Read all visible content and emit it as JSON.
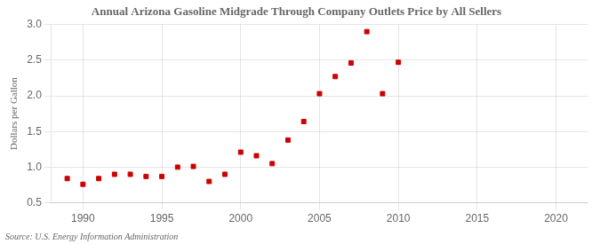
{
  "chart_data": {
    "type": "scatter",
    "title": "Annual Arizona Gasoline Midgrade Through Company Outlets Price by All Sellers",
    "ylabel": "Dollars per Gallon",
    "source": "Source: U.S. Energy Information Administration",
    "x": [
      1989,
      1990,
      1991,
      1992,
      1993,
      1994,
      1995,
      1996,
      1997,
      1998,
      1999,
      2000,
      2001,
      2002,
      2003,
      2004,
      2005,
      2006,
      2007,
      2008,
      2009,
      2010
    ],
    "values": [
      0.84,
      0.76,
      0.84,
      0.9,
      0.9,
      0.87,
      0.87,
      1.0,
      1.01,
      0.8,
      0.9,
      1.21,
      1.16,
      1.05,
      1.38,
      1.64,
      2.03,
      2.27,
      2.46,
      2.9,
      2.03,
      2.47
    ],
    "xlim": [
      1988,
      2022
    ],
    "ylim": [
      0.5,
      3.0
    ],
    "xticks": [
      1990,
      1995,
      2000,
      2005,
      2010,
      2015,
      2020
    ],
    "yticks": [
      0.5,
      {
        "value": 1.0,
        "label": "1.0"
      },
      1.5,
      {
        "value": 2.0,
        "label": "2.0"
      },
      2.5,
      {
        "value": 3.0,
        "label": "3.0"
      }
    ],
    "color": "#cc0000",
    "marker": "square",
    "grid": true
  }
}
